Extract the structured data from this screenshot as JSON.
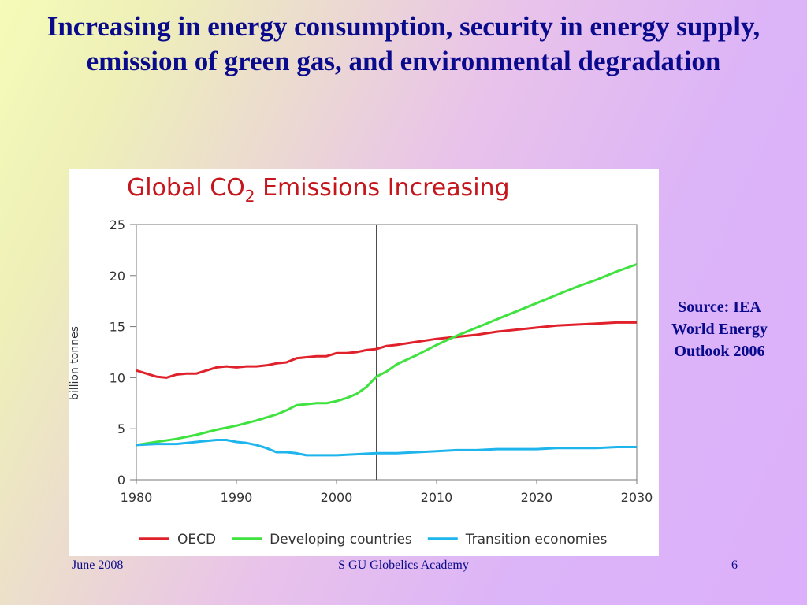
{
  "slide": {
    "title": "Increasing in energy consumption, security in energy supply, emission of green gas, and environmental degradation",
    "source_note": "Source: IEA World Energy Outlook 2006"
  },
  "footer": {
    "date": "June 2008",
    "org": "S GU Globelics Academy",
    "page": "6"
  },
  "chart_data": {
    "type": "line",
    "title_main": "Global CO",
    "title_sub": "2",
    "title_rest": " Emissions Increasing",
    "ylabel": "billion tonnes",
    "xlabel": "",
    "xlim": [
      1980,
      2030
    ],
    "ylim": [
      0,
      25
    ],
    "x_ticks": [
      1980,
      1990,
      2000,
      2010,
      2020,
      2030
    ],
    "y_ticks": [
      0,
      5,
      10,
      15,
      20,
      25
    ],
    "grid": false,
    "legend_position": "bottom",
    "reference_line_x": 2004,
    "series": [
      {
        "name": "OECD",
        "color": "#e0202a",
        "points": [
          [
            1980,
            10.7
          ],
          [
            1981,
            10.4
          ],
          [
            1982,
            10.1
          ],
          [
            1983,
            10.0
          ],
          [
            1984,
            10.3
          ],
          [
            1985,
            10.4
          ],
          [
            1986,
            10.4
          ],
          [
            1987,
            10.7
          ],
          [
            1988,
            11.0
          ],
          [
            1989,
            11.1
          ],
          [
            1990,
            11.0
          ],
          [
            1991,
            11.1
          ],
          [
            1992,
            11.1
          ],
          [
            1993,
            11.2
          ],
          [
            1994,
            11.4
          ],
          [
            1995,
            11.5
          ],
          [
            1996,
            11.9
          ],
          [
            1997,
            12.0
          ],
          [
            1998,
            12.1
          ],
          [
            1999,
            12.1
          ],
          [
            2000,
            12.4
          ],
          [
            2001,
            12.4
          ],
          [
            2002,
            12.5
          ],
          [
            2003,
            12.7
          ],
          [
            2004,
            12.8
          ],
          [
            2005,
            13.1
          ],
          [
            2006,
            13.2
          ],
          [
            2008,
            13.5
          ],
          [
            2010,
            13.8
          ],
          [
            2012,
            14.0
          ],
          [
            2014,
            14.2
          ],
          [
            2016,
            14.5
          ],
          [
            2018,
            14.7
          ],
          [
            2020,
            14.9
          ],
          [
            2022,
            15.1
          ],
          [
            2024,
            15.2
          ],
          [
            2026,
            15.3
          ],
          [
            2028,
            15.4
          ],
          [
            2030,
            15.4
          ]
        ]
      },
      {
        "name": "Developing countries",
        "color": "#3fe23f",
        "points": [
          [
            1980,
            3.4
          ],
          [
            1982,
            3.7
          ],
          [
            1984,
            4.0
          ],
          [
            1986,
            4.4
          ],
          [
            1988,
            4.9
          ],
          [
            1990,
            5.3
          ],
          [
            1992,
            5.8
          ],
          [
            1994,
            6.4
          ],
          [
            1995,
            6.8
          ],
          [
            1996,
            7.3
          ],
          [
            1997,
            7.4
          ],
          [
            1998,
            7.5
          ],
          [
            1999,
            7.5
          ],
          [
            2000,
            7.7
          ],
          [
            2001,
            8.0
          ],
          [
            2002,
            8.4
          ],
          [
            2003,
            9.1
          ],
          [
            2004,
            10.1
          ],
          [
            2005,
            10.6
          ],
          [
            2006,
            11.3
          ],
          [
            2008,
            12.2
          ],
          [
            2010,
            13.2
          ],
          [
            2012,
            14.1
          ],
          [
            2014,
            14.9
          ],
          [
            2016,
            15.7
          ],
          [
            2018,
            16.5
          ],
          [
            2020,
            17.3
          ],
          [
            2022,
            18.1
          ],
          [
            2024,
            18.9
          ],
          [
            2026,
            19.6
          ],
          [
            2028,
            20.4
          ],
          [
            2030,
            21.1
          ]
        ]
      },
      {
        "name": "Transition economies",
        "color": "#1eb4ec",
        "points": [
          [
            1980,
            3.4
          ],
          [
            1982,
            3.5
          ],
          [
            1984,
            3.5
          ],
          [
            1986,
            3.7
          ],
          [
            1988,
            3.9
          ],
          [
            1989,
            3.9
          ],
          [
            1990,
            3.7
          ],
          [
            1991,
            3.6
          ],
          [
            1992,
            3.4
          ],
          [
            1993,
            3.1
          ],
          [
            1994,
            2.7
          ],
          [
            1995,
            2.7
          ],
          [
            1996,
            2.6
          ],
          [
            1997,
            2.4
          ],
          [
            1998,
            2.4
          ],
          [
            2000,
            2.4
          ],
          [
            2002,
            2.5
          ],
          [
            2004,
            2.6
          ],
          [
            2006,
            2.6
          ],
          [
            2008,
            2.7
          ],
          [
            2010,
            2.8
          ],
          [
            2012,
            2.9
          ],
          [
            2014,
            2.9
          ],
          [
            2016,
            3.0
          ],
          [
            2018,
            3.0
          ],
          [
            2020,
            3.0
          ],
          [
            2022,
            3.1
          ],
          [
            2024,
            3.1
          ],
          [
            2026,
            3.1
          ],
          [
            2028,
            3.2
          ],
          [
            2030,
            3.2
          ]
        ]
      }
    ]
  }
}
